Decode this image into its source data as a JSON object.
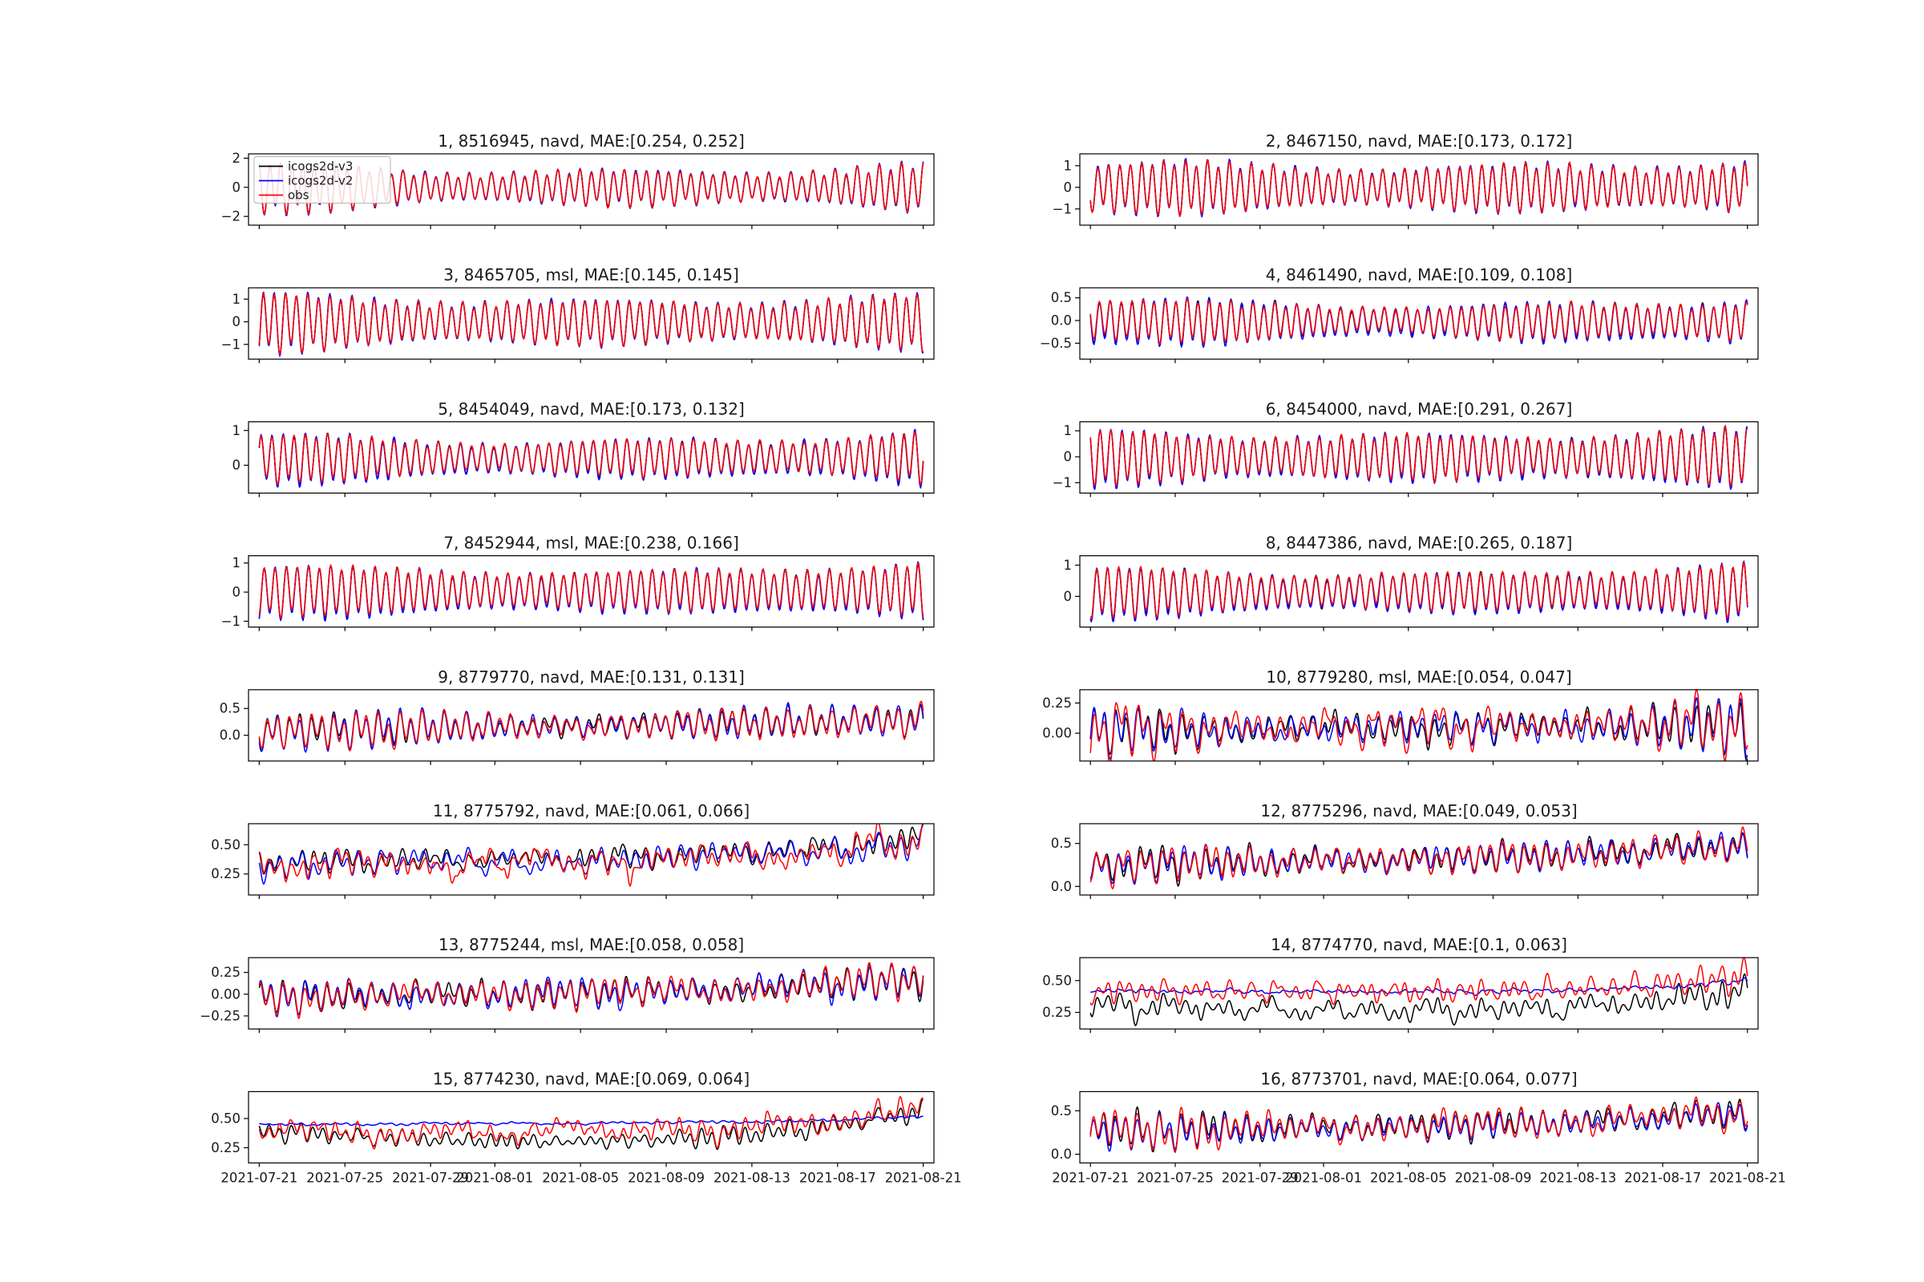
{
  "figure": {
    "background": "#ffffff",
    "x_tick_labels": [
      "2021-07-21",
      "2021-07-25",
      "2021-07-29",
      "2021-08-01",
      "2021-08-05",
      "2021-08-09",
      "2021-08-13",
      "2021-08-17",
      "2021-08-21"
    ],
    "x_domain_start": "2021-07-20T12:00:00Z",
    "x_domain_days": 32,
    "data_start_day_offset": 0.5,
    "data_days": 31
  },
  "legend": {
    "location": "upper-left-of-subplot-1",
    "entries": [
      {
        "label": "icogs2d-v3",
        "color": "#000000"
      },
      {
        "label": "icogs2d-v2",
        "color": "#0000ff"
      },
      {
        "label": "obs",
        "color": "#ff0000"
      }
    ]
  },
  "chart_data": [
    {
      "type": "line",
      "index": 1,
      "station": "8516945",
      "datum": "navd",
      "mae": [
        0.254,
        0.252
      ],
      "title": "1, 8516945, navd, MAE:[0.254, 0.252]",
      "ytick_vals": [
        2,
        0,
        -2
      ],
      "ytick_labels": [
        "2",
        "0",
        "−2"
      ],
      "ylim": [
        -2.6,
        2.3
      ],
      "gen": {
        "mean": [
          0,
          0
        ],
        "amp": [
          1.35,
          0.95,
          1.3
        ],
        "beat": 0.2,
        "beatPhase": 2,
        "diurnal": 0.22,
        "noise": 0.05,
        "phase": 0.3,
        "rise": 0,
        "seed": 101
      },
      "series": [
        {
          "name": "icogs2d-v3",
          "color": "#000000",
          "am": 1.0,
          "dm": 0,
          "nm": 1
        },
        {
          "name": "icogs2d-v2",
          "color": "#0000ff",
          "am": 1.05,
          "dm": 0,
          "nm": 0.9
        },
        {
          "name": "obs",
          "color": "#ff0000",
          "am": 1.0,
          "dm": 0,
          "nm": 1.1
        }
      ]
    },
    {
      "type": "line",
      "index": 2,
      "station": "8467150",
      "datum": "navd",
      "mae": [
        0.173,
        0.172
      ],
      "title": "2, 8467150, navd, MAE:[0.173, 0.172]",
      "ytick_vals": [
        1,
        0,
        -1
      ],
      "ytick_labels": [
        "1",
        "0",
        "−1"
      ],
      "ylim": [
        -1.75,
        1.55
      ],
      "gen": {
        "mean": [
          0,
          0
        ],
        "amp": [
          1.05,
          0.85,
          1.05
        ],
        "beat": 0.18,
        "beatPhase": 5,
        "diurnal": 0.2,
        "noise": 0.045,
        "phase": 2.1,
        "rise": 0,
        "seed": 114
      },
      "series": [
        {
          "name": "icogs2d-v3",
          "color": "#000000",
          "am": 1.0,
          "dm": 0,
          "nm": 1
        },
        {
          "name": "icogs2d-v2",
          "color": "#0000ff",
          "am": 1.05,
          "dm": 0,
          "nm": 0.9
        },
        {
          "name": "obs",
          "color": "#ff0000",
          "am": 1.0,
          "dm": 0,
          "nm": 1.1
        }
      ]
    },
    {
      "type": "line",
      "index": 3,
      "station": "8465705",
      "datum": "msl",
      "mae": [
        0.145,
        0.145
      ],
      "title": "3, 8465705, msl, MAE:[0.145, 0.145]",
      "ytick_vals": [
        1,
        0,
        -1
      ],
      "ytick_labels": [
        "1",
        "0",
        "−1"
      ],
      "ylim": [
        -1.65,
        1.5
      ],
      "gen": {
        "mean": [
          0,
          0
        ],
        "amp": [
          1.1,
          0.8,
          1.0
        ],
        "beat": 0.15,
        "beatPhase": 1,
        "diurnal": 0.18,
        "noise": 0.04,
        "phase": 4.0,
        "rise": 0,
        "seed": 127
      },
      "series": [
        {
          "name": "icogs2d-v3",
          "color": "#000000",
          "am": 1.0,
          "dm": 0,
          "nm": 1
        },
        {
          "name": "icogs2d-v2",
          "color": "#0000ff",
          "am": 1.05,
          "dm": 0,
          "nm": 0.9
        },
        {
          "name": "obs",
          "color": "#ff0000",
          "am": 1.0,
          "dm": 0,
          "nm": 1.1
        }
      ]
    },
    {
      "type": "line",
      "index": 4,
      "station": "8461490",
      "datum": "navd",
      "mae": [
        0.109,
        0.108
      ],
      "title": "4, 8461490, navd, MAE:[0.109, 0.108]",
      "ytick_vals": [
        0.5,
        0,
        -0.5
      ],
      "ytick_labels": [
        "0.5",
        "0.0",
        "−0.5"
      ],
      "ylim": [
        -0.85,
        0.72
      ],
      "gen": {
        "mean": [
          0,
          -0.02
        ],
        "amp": [
          0.46,
          0.3,
          0.44
        ],
        "beat": 0.18,
        "beatPhase": 6,
        "diurnal": 0.15,
        "noise": 0.035,
        "phase": 1.2,
        "rise": 0,
        "seed": 140
      },
      "series": [
        {
          "name": "icogs2d-v3",
          "color": "#000000",
          "am": 1.05,
          "dm": -0.01,
          "nm": 1
        },
        {
          "name": "icogs2d-v2",
          "color": "#0000ff",
          "am": 1.12,
          "dm": -0.02,
          "nm": 0.9
        },
        {
          "name": "obs",
          "color": "#ff0000",
          "am": 1.0,
          "dm": 0,
          "nm": 1.1
        }
      ]
    },
    {
      "type": "line",
      "index": 5,
      "station": "8454049",
      "datum": "navd",
      "mae": [
        0.173,
        0.132
      ],
      "title": "5, 8454049, navd, MAE:[0.173, 0.132]",
      "ytick_vals": [
        1,
        0
      ],
      "ytick_labels": [
        "1",
        "0"
      ],
      "ylim": [
        -0.8,
        1.25
      ],
      "gen": {
        "mean": [
          0.2,
          0.25
        ],
        "amp": [
          0.6,
          0.42,
          0.62
        ],
        "beat": 0.18,
        "beatPhase": 3,
        "diurnal": 0.15,
        "noise": 0.04,
        "phase": 5.3,
        "rise": 0,
        "seed": 153
      },
      "series": [
        {
          "name": "icogs2d-v3",
          "color": "#000000",
          "am": 1.05,
          "dm": -0.02,
          "nm": 1
        },
        {
          "name": "icogs2d-v2",
          "color": "#0000ff",
          "am": 1.1,
          "dm": -0.03,
          "nm": 0.9
        },
        {
          "name": "obs",
          "color": "#ff0000",
          "am": 1.0,
          "dm": 0,
          "nm": 1.1
        }
      ]
    },
    {
      "type": "line",
      "index": 6,
      "station": "8454000",
      "datum": "navd",
      "mae": [
        0.291,
        0.267
      ],
      "title": "6, 8454000, navd, MAE:[0.291, 0.267]",
      "ytick_vals": [
        1,
        0,
        -1
      ],
      "ytick_labels": [
        "1",
        "0",
        "−1"
      ],
      "ylim": [
        -1.4,
        1.35
      ],
      "gen": {
        "mean": [
          0,
          0
        ],
        "amp": [
          0.9,
          0.72,
          0.92
        ],
        "beat": 0.15,
        "beatPhase": 0.5,
        "diurnal": 0.15,
        "noise": 0.05,
        "phase": 0.8,
        "rise": 0,
        "seed": 166
      },
      "series": [
        {
          "name": "icogs2d-v3",
          "color": "#000000",
          "am": 1.04,
          "dm": -0.02,
          "nm": 1
        },
        {
          "name": "icogs2d-v2",
          "color": "#0000ff",
          "am": 1.08,
          "dm": -0.03,
          "nm": 0.9
        },
        {
          "name": "obs",
          "color": "#ff0000",
          "am": 1.0,
          "dm": 0,
          "nm": 1.1
        }
      ]
    },
    {
      "type": "line",
      "index": 7,
      "station": "8452944",
      "datum": "msl",
      "mae": [
        0.238,
        0.166
      ],
      "title": "7, 8452944, msl, MAE:[0.238, 0.166]",
      "ytick_vals": [
        1,
        0,
        -1
      ],
      "ytick_labels": [
        "1",
        "0",
        "−1"
      ],
      "ylim": [
        -1.2,
        1.25
      ],
      "gen": {
        "mean": [
          0.05,
          0.1
        ],
        "amp": [
          0.8,
          0.58,
          0.82
        ],
        "beat": 0.12,
        "beatPhase": 4,
        "diurnal": 0.15,
        "noise": 0.045,
        "phase": 3.5,
        "rise": 0,
        "seed": 179
      },
      "series": [
        {
          "name": "icogs2d-v3",
          "color": "#000000",
          "am": 1.04,
          "dm": -0.03,
          "nm": 1
        },
        {
          "name": "icogs2d-v2",
          "color": "#0000ff",
          "am": 1.08,
          "dm": -0.05,
          "nm": 0.9
        },
        {
          "name": "obs",
          "color": "#ff0000",
          "am": 1.0,
          "dm": 0,
          "nm": 1.1
        }
      ]
    },
    {
      "type": "line",
      "index": 8,
      "station": "8447386",
      "datum": "navd",
      "mae": [
        0.265,
        0.187
      ],
      "title": "8, 8447386, navd, MAE:[0.265, 0.187]",
      "ytick_vals": [
        1,
        0
      ],
      "ytick_labels": [
        "1",
        "0"
      ],
      "ylim": [
        -0.98,
        1.3
      ],
      "gen": {
        "mean": [
          0.15,
          0.2
        ],
        "amp": [
          0.7,
          0.5,
          0.75
        ],
        "beat": 0.15,
        "beatPhase": 2.5,
        "diurnal": 0.15,
        "noise": 0.045,
        "phase": 2.7,
        "rise": 0,
        "seed": 192
      },
      "series": [
        {
          "name": "icogs2d-v3",
          "color": "#000000",
          "am": 1.04,
          "dm": -0.03,
          "nm": 1
        },
        {
          "name": "icogs2d-v2",
          "color": "#0000ff",
          "am": 1.08,
          "dm": -0.05,
          "nm": 0.9
        },
        {
          "name": "obs",
          "color": "#ff0000",
          "am": 1.0,
          "dm": 0,
          "nm": 1.1
        }
      ]
    },
    {
      "type": "line",
      "index": 9,
      "station": "8779770",
      "datum": "navd",
      "mae": [
        0.131,
        0.131
      ],
      "title": "9, 8779770, navd, MAE:[0.131, 0.131]",
      "ytick_vals": [
        0.5,
        0
      ],
      "ytick_labels": [
        "0.5",
        "0.0"
      ],
      "ylim": [
        -0.48,
        0.85
      ],
      "gen": {
        "mean": [
          0.08,
          0.28
        ],
        "amp": [
          0.3,
          0.16,
          0.27
        ],
        "beat": 0.2,
        "beatPhase": 7,
        "diurnal": 0.45,
        "noise": 0.07,
        "phase": 1.9,
        "rise": 0,
        "seed": 205
      },
      "series": [
        {
          "name": "icogs2d-v3",
          "color": "#000000",
          "am": 1.0,
          "dm": 0,
          "nm": 1
        },
        {
          "name": "icogs2d-v2",
          "color": "#0000ff",
          "am": 1.03,
          "dm": 0,
          "nm": 0.9
        },
        {
          "name": "obs",
          "color": "#ff0000",
          "am": 1.0,
          "dm": 0,
          "nm": 1.3
        }
      ]
    },
    {
      "type": "line",
      "index": 10,
      "station": "8779280",
      "datum": "msl",
      "mae": [
        0.054,
        0.047
      ],
      "title": "10, 8779280, msl, MAE:[0.054, 0.047]",
      "ytick_vals": [
        0.25,
        0
      ],
      "ytick_labels": [
        "0.25",
        "0.00"
      ],
      "ylim": [
        -0.23,
        0.36
      ],
      "gen": {
        "mean": [
          0.02,
          0.07
        ],
        "amp": [
          0.13,
          0.07,
          0.15
        ],
        "beat": 0.2,
        "beatPhase": 1,
        "diurnal": 0.5,
        "noise": 0.06,
        "phase": 4.4,
        "rise": 0,
        "seed": 218
      },
      "series": [
        {
          "name": "icogs2d-v3",
          "color": "#000000",
          "am": 1.0,
          "dm": 0,
          "nm": 1
        },
        {
          "name": "icogs2d-v2",
          "color": "#0000ff",
          "am": 1.03,
          "dm": 0,
          "nm": 0.9
        },
        {
          "name": "obs",
          "color": "#ff0000",
          "am": 1.0,
          "dm": 0.01,
          "nm": 1.4
        }
      ]
    },
    {
      "type": "line",
      "index": 11,
      "station": "8775792",
      "datum": "navd",
      "mae": [
        0.061,
        0.066
      ],
      "title": "11, 8775792, navd, MAE:[0.061, 0.066]",
      "ytick_vals": [
        0.5,
        0.25
      ],
      "ytick_labels": [
        "0.50",
        "0.25"
      ],
      "ylim": [
        0.07,
        0.68
      ],
      "gen": {
        "mean": [
          0.33,
          0.4
        ],
        "amp": [
          0.06,
          0.05,
          0.07
        ],
        "beat": 0.2,
        "beatPhase": 3,
        "diurnal": 0.5,
        "noise": 0.07,
        "phase": 0.5,
        "rise": 0.14,
        "seed": 231
      },
      "series": [
        {
          "name": "icogs2d-v3",
          "color": "#000000",
          "am": 1.0,
          "dm": 0.02,
          "nm": 0.8
        },
        {
          "name": "icogs2d-v2",
          "color": "#0000ff",
          "am": 1.0,
          "dm": 0,
          "nm": 0.9
        },
        {
          "name": "obs",
          "color": "#ff0000",
          "am": 1.0,
          "dm": -0.01,
          "nm": 1.5
        }
      ]
    },
    {
      "type": "line",
      "index": 12,
      "station": "8775296",
      "datum": "navd",
      "mae": [
        0.049,
        0.053
      ],
      "title": "12, 8775296, navd, MAE:[0.049, 0.053]",
      "ytick_vals": [
        0.5,
        0
      ],
      "ytick_labels": [
        "0.5",
        "0.0"
      ],
      "ylim": [
        -0.1,
        0.73
      ],
      "gen": {
        "mean": [
          0.25,
          0.38
        ],
        "amp": [
          0.13,
          0.1,
          0.12
        ],
        "beat": 0.2,
        "beatPhase": 5,
        "diurnal": 0.5,
        "noise": 0.06,
        "phase": 3.1,
        "rise": 0.11,
        "seed": 244
      },
      "series": [
        {
          "name": "icogs2d-v3",
          "color": "#000000",
          "am": 1.0,
          "dm": 0,
          "nm": 1
        },
        {
          "name": "icogs2d-v2",
          "color": "#0000ff",
          "am": 1.03,
          "dm": 0,
          "nm": 0.9
        },
        {
          "name": "obs",
          "color": "#ff0000",
          "am": 1.0,
          "dm": 0,
          "nm": 1.3
        }
      ]
    },
    {
      "type": "line",
      "index": 13,
      "station": "8775244",
      "datum": "msl",
      "mae": [
        0.058,
        0.058
      ],
      "title": "13, 8775244, msl, MAE:[0.058, 0.058]",
      "ytick_vals": [
        0.25,
        0,
        -0.25
      ],
      "ytick_labels": [
        "0.25",
        "0.00",
        "−0.25"
      ],
      "ylim": [
        -0.4,
        0.42
      ],
      "gen": {
        "mean": [
          -0.03,
          0.06
        ],
        "amp": [
          0.12,
          0.1,
          0.12
        ],
        "beat": 0.2,
        "beatPhase": 0,
        "diurnal": 0.5,
        "noise": 0.06,
        "phase": 5.7,
        "rise": 0.13,
        "seed": 257
      },
      "series": [
        {
          "name": "icogs2d-v3",
          "color": "#000000",
          "am": 1.0,
          "dm": 0,
          "nm": 1
        },
        {
          "name": "icogs2d-v2",
          "color": "#0000ff",
          "am": 1.03,
          "dm": 0,
          "nm": 0.9
        },
        {
          "name": "obs",
          "color": "#ff0000",
          "am": 1.0,
          "dm": 0,
          "nm": 1.3
        }
      ]
    },
    {
      "type": "line",
      "index": 14,
      "station": "8774770",
      "datum": "navd",
      "mae": [
        0.1,
        0.063
      ],
      "title": "14, 8774770, navd, MAE:[0.1, 0.063]",
      "ytick_vals": [
        0.5,
        0.25
      ],
      "ytick_labels": [
        "0.50",
        "0.25"
      ],
      "ylim": [
        0.12,
        0.68
      ],
      "gen": {
        "mean": [
          0.42,
          0.4
        ],
        "amp": [
          0.05,
          0.04,
          0.07
        ],
        "beat": 0.2,
        "beatPhase": 2,
        "diurnal": 0.5,
        "noise": 0.05,
        "phase": 2.3,
        "rise": 0.14,
        "seed": 270
      },
      "series": [
        {
          "name": "icogs2d-v3",
          "color": "#000000",
          "am": 1.0,
          "dm": -0.11,
          "nm": 1.1,
          "sag": 0.04
        },
        {
          "name": "icogs2d-v2",
          "color": "#0000ff",
          "am": 0.15,
          "dm": 0,
          "nm": 0.3,
          "rm": 0.7
        },
        {
          "name": "obs",
          "color": "#ff0000",
          "am": 1.0,
          "dm": 0,
          "nm": 1.4
        }
      ]
    },
    {
      "type": "line",
      "index": 15,
      "station": "8774230",
      "datum": "navd",
      "mae": [
        0.069,
        0.064
      ],
      "title": "15, 8774230, navd, MAE:[0.069, 0.064]",
      "ytick_vals": [
        0.5,
        0.25
      ],
      "ytick_labels": [
        "0.50",
        "0.25"
      ],
      "ylim": [
        0.12,
        0.73
      ],
      "gen": {
        "mean": [
          0.4,
          0.42
        ],
        "amp": [
          0.05,
          0.04,
          0.07
        ],
        "beat": 0.2,
        "beatPhase": 6,
        "diurnal": 0.5,
        "noise": 0.05,
        "phase": 1.0,
        "rise": 0.17,
        "seed": 283
      },
      "series": [
        {
          "name": "icogs2d-v3",
          "color": "#000000",
          "am": 1.0,
          "dm": 0,
          "nm": 1.1,
          "sag": 0.11,
          "rm": 0.9
        },
        {
          "name": "icogs2d-v2",
          "color": "#0000ff",
          "am": 0.12,
          "dm": 0.05,
          "nm": 0.25,
          "rm": 0.25
        },
        {
          "name": "obs",
          "color": "#ff0000",
          "am": 1.1,
          "dm": -0.02,
          "nm": 1.4
        }
      ]
    },
    {
      "type": "line",
      "index": 16,
      "station": "8773701",
      "datum": "navd",
      "mae": [
        0.064,
        0.077
      ],
      "title": "16, 8773701, navd, MAE:[0.064, 0.077]",
      "ytick_vals": [
        0.5,
        0
      ],
      "ytick_labels": [
        "0.5",
        "0.0"
      ],
      "ylim": [
        -0.1,
        0.72
      ],
      "gen": {
        "mean": [
          0.27,
          0.38
        ],
        "amp": [
          0.15,
          0.1,
          0.12
        ],
        "beat": 0.2,
        "beatPhase": 4,
        "diurnal": 0.45,
        "noise": 0.06,
        "phase": 4.8,
        "rise": 0.12,
        "seed": 296
      },
      "series": [
        {
          "name": "icogs2d-v3",
          "color": "#000000",
          "am": 1.0,
          "dm": 0,
          "nm": 1
        },
        {
          "name": "icogs2d-v2",
          "color": "#0000ff",
          "am": 0.9,
          "dm": -0.02,
          "nm": 0.7
        },
        {
          "name": "obs",
          "color": "#ff0000",
          "am": 1.0,
          "dm": 0,
          "nm": 1.3
        }
      ]
    }
  ]
}
